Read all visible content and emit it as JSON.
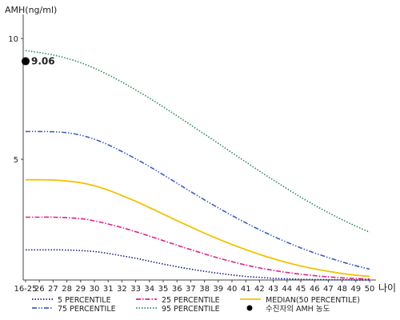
{
  "chart_data": {
    "type": "line",
    "ylabel": "AMH(ng/ml)",
    "xlabel": "나이",
    "ylim": [
      0,
      11
    ],
    "y_ticks": [
      5,
      10
    ],
    "categories": [
      "16-25",
      "26",
      "27",
      "28",
      "29",
      "30",
      "31",
      "32",
      "33",
      "34",
      "35",
      "36",
      "37",
      "38",
      "39",
      "40",
      "41",
      "42",
      "43",
      "44",
      "45",
      "46",
      "47",
      "48",
      "49",
      "50"
    ],
    "series": [
      {
        "name": "5 PERCENTILE",
        "color": "#1a237e",
        "style": "dotted",
        "values": [
          1.25,
          1.25,
          1.25,
          1.24,
          1.22,
          1.18,
          1.1,
          1.0,
          0.9,
          0.78,
          0.66,
          0.55,
          0.45,
          0.36,
          0.28,
          0.21,
          0.15,
          0.11,
          0.07,
          0.05,
          0.03,
          0.02,
          0.01,
          0.01,
          0.0,
          0.0
        ]
      },
      {
        "name": "25 PERCENTILE",
        "color": "#e0218a",
        "style": "dashdot",
        "values": [
          2.6,
          2.6,
          2.6,
          2.58,
          2.54,
          2.45,
          2.32,
          2.17,
          2.0,
          1.82,
          1.63,
          1.44,
          1.26,
          1.08,
          0.91,
          0.76,
          0.62,
          0.5,
          0.4,
          0.31,
          0.24,
          0.18,
          0.13,
          0.09,
          0.06,
          0.04
        ]
      },
      {
        "name": "MEDIAN(50 PERCENTILE)",
        "color": "#f2c200",
        "style": "solid",
        "values": [
          4.15,
          4.15,
          4.14,
          4.1,
          4.03,
          3.9,
          3.72,
          3.5,
          3.26,
          3.0,
          2.73,
          2.46,
          2.2,
          1.94,
          1.7,
          1.47,
          1.26,
          1.06,
          0.88,
          0.72,
          0.58,
          0.46,
          0.36,
          0.27,
          0.2,
          0.15
        ]
      },
      {
        "name": "75 PERCENTILE",
        "color": "#3f5fbf",
        "style": "dashdotdot",
        "values": [
          6.15,
          6.15,
          6.14,
          6.1,
          6.0,
          5.83,
          5.6,
          5.32,
          5.02,
          4.7,
          4.36,
          4.01,
          3.66,
          3.32,
          2.99,
          2.67,
          2.37,
          2.08,
          1.81,
          1.56,
          1.33,
          1.12,
          0.93,
          0.75,
          0.59,
          0.45
        ]
      },
      {
        "name": "95 PERCENTILE",
        "color": "#2e8b57",
        "style": "dotted",
        "values": [
          9.5,
          9.42,
          9.32,
          9.18,
          9.0,
          8.77,
          8.5,
          8.2,
          7.87,
          7.53,
          7.17,
          6.8,
          6.42,
          6.04,
          5.66,
          5.27,
          4.89,
          4.51,
          4.14,
          3.78,
          3.43,
          3.1,
          2.79,
          2.5,
          2.23,
          1.98
        ]
      }
    ],
    "marker": {
      "name": "수진자의 AMH 농도",
      "x": "16-25",
      "y": 9.06,
      "label": "9.06",
      "color": "#000000"
    },
    "legend_position": "bottom",
    "grid": false
  }
}
